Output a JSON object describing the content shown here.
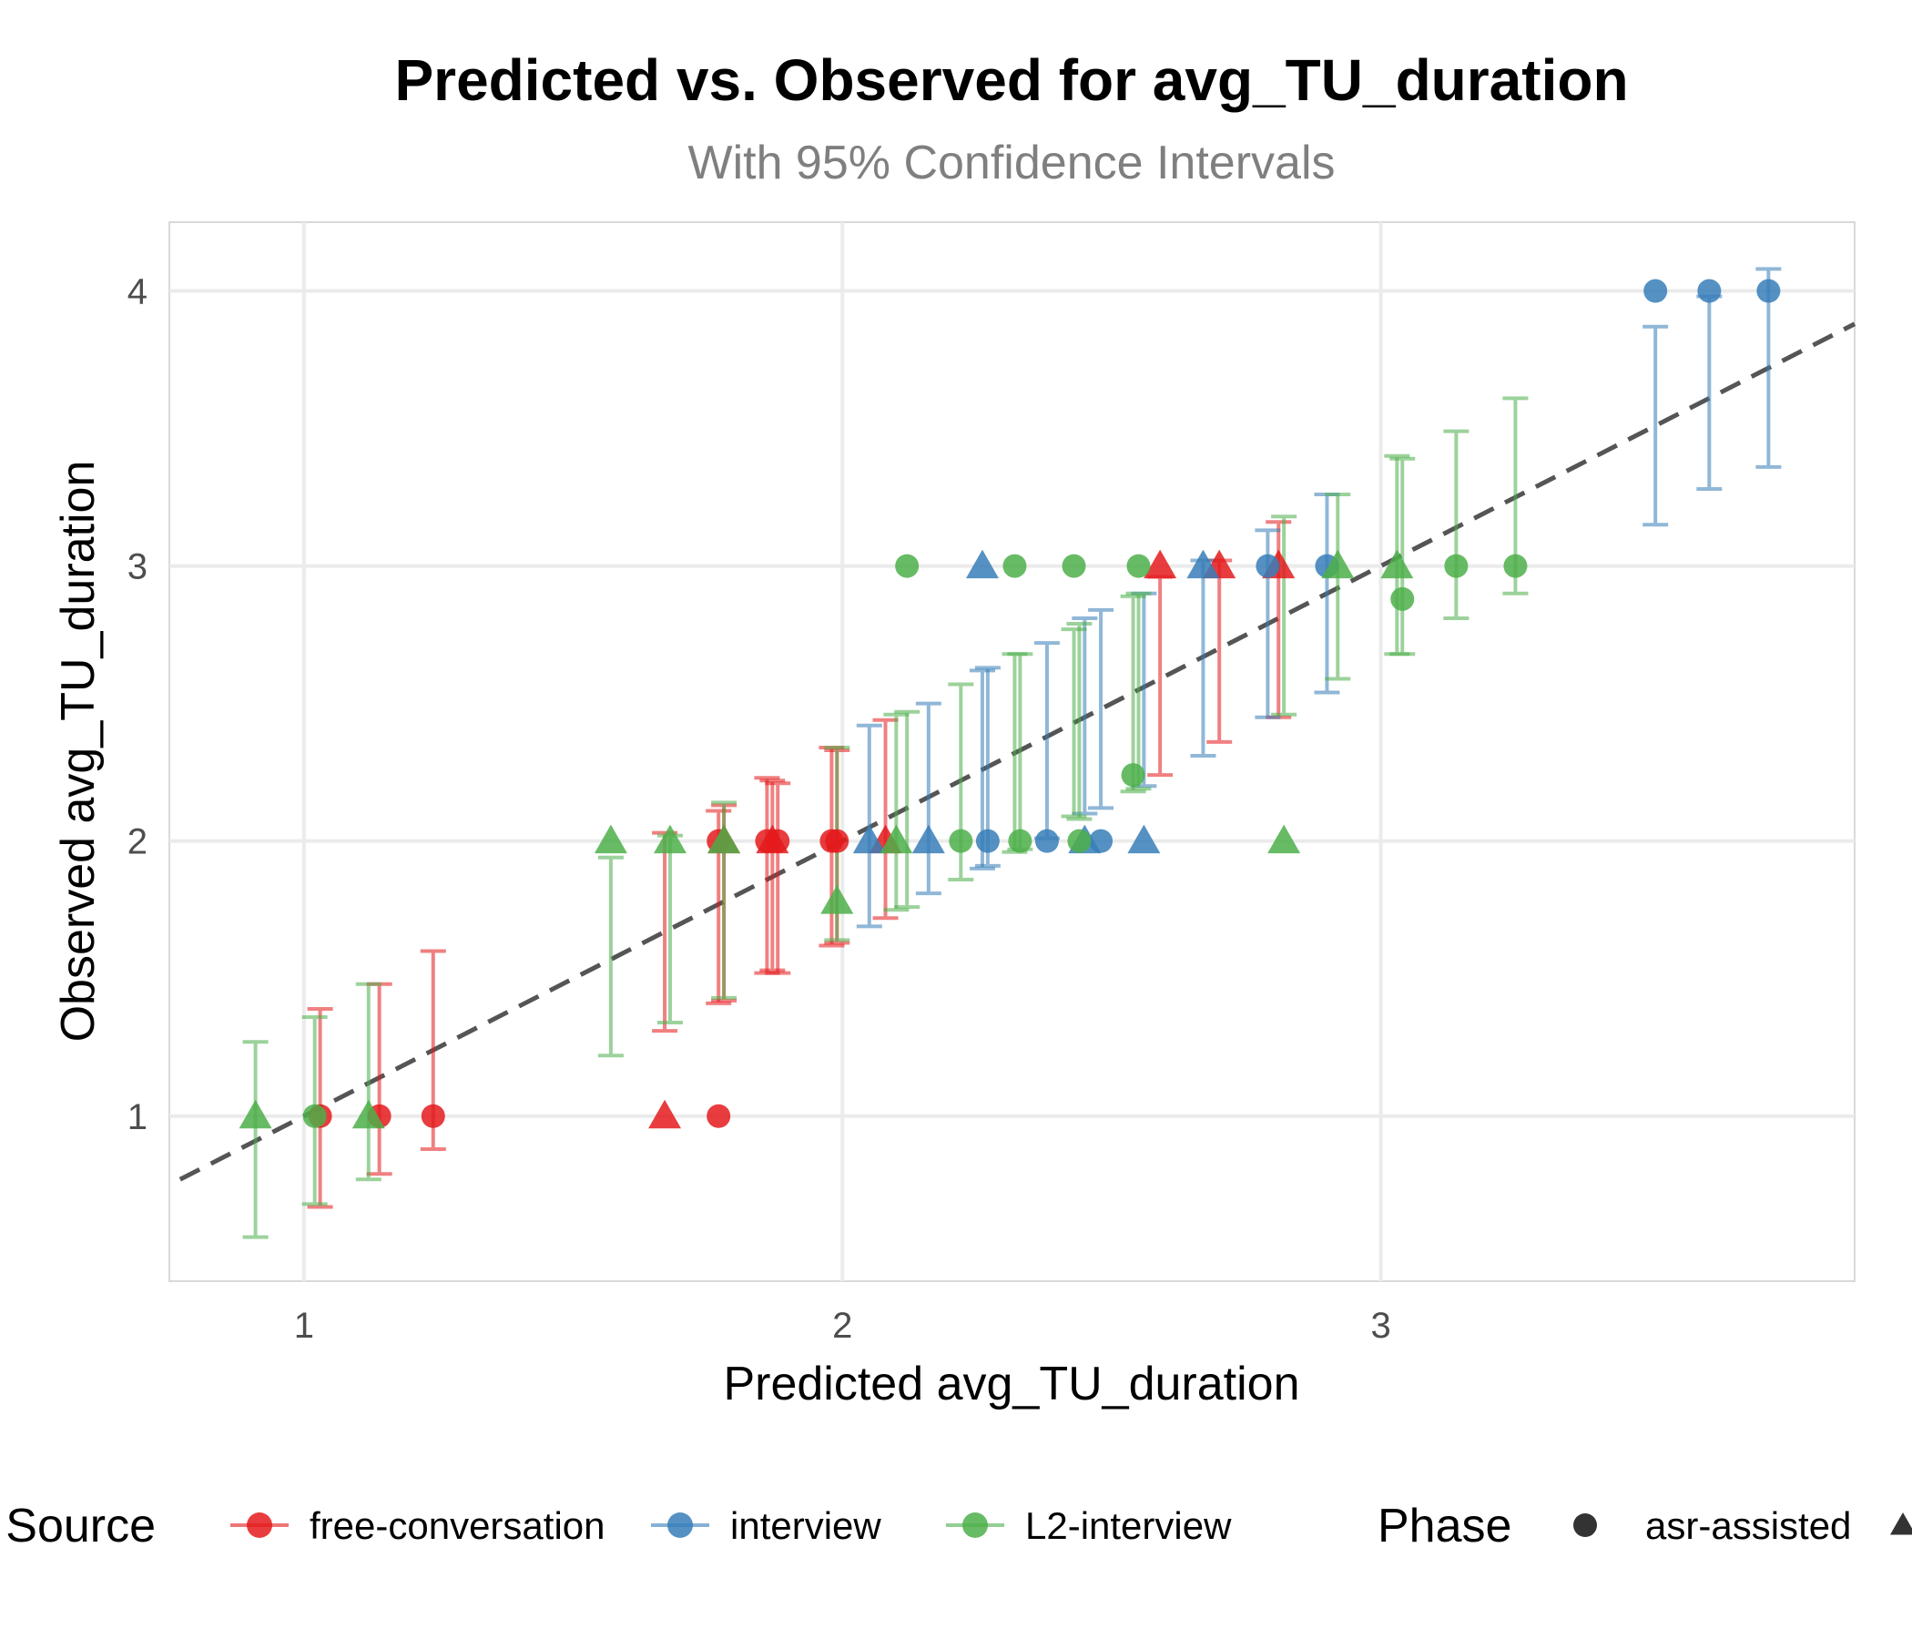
{
  "chart_data": {
    "type": "scatter",
    "title": "Predicted vs. Observed for avg_TU_duration",
    "subtitle": "With 95% Confidence Intervals",
    "xlabel": "Predicted avg_TU_duration",
    "ylabel": "Observed avg_TU_duration",
    "xlim": [
      0.75,
      3.88
    ],
    "ylim": [
      0.4,
      4.25
    ],
    "x_ticks": [
      "1",
      "2",
      "3"
    ],
    "y_ticks": [
      "1",
      "2",
      "3",
      "4"
    ],
    "grid": true,
    "reference_line": {
      "style": "dashed",
      "slope": 1,
      "intercept": 0,
      "color": "#555555"
    },
    "legend": {
      "position": "bottom",
      "color_title": "Data Source",
      "shape_title": "Phase",
      "color_entries": [
        {
          "label": "free-conversation",
          "color": "#E41A1C"
        },
        {
          "label": "interview",
          "color": "#377EB8"
        },
        {
          "label": "L2-interview",
          "color": "#4DAF4A"
        }
      ],
      "shape_entries": [
        {
          "label": "asr-assisted",
          "shape": "circle"
        },
        {
          "label": "",
          "shape": "triangle"
        }
      ]
    },
    "series": [
      {
        "source": "free-conversation",
        "color": "#E41A1C",
        "points": [
          {
            "phase": "asr-assisted",
            "x": 1.03,
            "y": 1.0,
            "lo": 0.67,
            "hi": 1.39
          },
          {
            "phase": "asr-assisted",
            "x": 1.14,
            "y": 1.0,
            "lo": 0.79,
            "hi": 1.48
          },
          {
            "phase": "asr-assisted",
            "x": 1.24,
            "y": 1.0,
            "lo": 0.88,
            "hi": 1.6
          },
          {
            "phase": "asr-assisted",
            "x": 1.77,
            "y": 1.0
          },
          {
            "phase": "asr-assisted",
            "x": 1.77,
            "y": 2.0,
            "lo": 1.41,
            "hi": 2.11
          },
          {
            "phase": "asr-assisted",
            "x": 1.86,
            "y": 2.0,
            "lo": 1.52,
            "hi": 2.23
          },
          {
            "phase": "asr-assisted",
            "x": 1.88,
            "y": 2.0,
            "lo": 1.52,
            "hi": 2.21
          },
          {
            "phase": "asr-assisted",
            "x": 1.98,
            "y": 2.0,
            "lo": 1.62,
            "hi": 2.34
          },
          {
            "phase": "asr-assisted",
            "x": 1.99,
            "y": 2.0,
            "lo": 1.63,
            "hi": 2.33
          },
          {
            "phase": "triangle",
            "x": 1.67,
            "y": 1.0,
            "lo": 1.31,
            "hi": 2.03
          },
          {
            "phase": "triangle",
            "x": 1.78,
            "y": 2.0,
            "lo": 1.42,
            "hi": 2.13
          },
          {
            "phase": "triangle",
            "x": 1.87,
            "y": 2.0,
            "lo": 1.53,
            "hi": 2.22
          },
          {
            "phase": "triangle",
            "x": 2.08,
            "y": 2.0,
            "lo": 1.72,
            "hi": 2.44
          },
          {
            "phase": "triangle",
            "x": 2.59,
            "y": 3.0,
            "lo": 2.24,
            "hi": 2.96
          },
          {
            "phase": "triangle",
            "x": 2.7,
            "y": 3.0,
            "lo": 2.36,
            "hi": 3.02
          },
          {
            "phase": "triangle",
            "x": 2.81,
            "y": 3.0,
            "lo": 2.45,
            "hi": 3.16
          }
        ]
      },
      {
        "source": "interview",
        "color": "#377EB8",
        "points": [
          {
            "phase": "asr-assisted",
            "x": 2.27,
            "y": 2.0,
            "lo": 1.91,
            "hi": 2.63
          },
          {
            "phase": "asr-assisted",
            "x": 2.38,
            "y": 2.0,
            "lo": 2.01,
            "hi": 2.72
          },
          {
            "phase": "asr-assisted",
            "x": 2.48,
            "y": 2.0,
            "lo": 2.12,
            "hi": 2.84
          },
          {
            "phase": "asr-assisted",
            "x": 2.79,
            "y": 3.0,
            "lo": 2.45,
            "hi": 3.13
          },
          {
            "phase": "asr-assisted",
            "x": 2.9,
            "y": 3.0,
            "lo": 2.54,
            "hi": 3.26
          },
          {
            "phase": "asr-assisted",
            "x": 3.51,
            "y": 4.0,
            "lo": 3.15,
            "hi": 3.87
          },
          {
            "phase": "asr-assisted",
            "x": 3.61,
            "y": 4.0,
            "lo": 3.28,
            "hi": 3.98
          },
          {
            "phase": "asr-assisted",
            "x": 3.72,
            "y": 4.0,
            "lo": 3.36,
            "hi": 4.08
          },
          {
            "phase": "triangle",
            "x": 2.05,
            "y": 2.0,
            "lo": 1.69,
            "hi": 2.42
          },
          {
            "phase": "triangle",
            "x": 2.16,
            "y": 2.0,
            "lo": 1.81,
            "hi": 2.5
          },
          {
            "phase": "triangle",
            "x": 2.26,
            "y": 3.0,
            "lo": 1.9,
            "hi": 2.62
          },
          {
            "phase": "triangle",
            "x": 2.45,
            "y": 2.0,
            "lo": 2.1,
            "hi": 2.81
          },
          {
            "phase": "triangle",
            "x": 2.56,
            "y": 2.0,
            "lo": 2.2,
            "hi": 2.9
          },
          {
            "phase": "triangle",
            "x": 2.67,
            "y": 3.0,
            "lo": 2.31,
            "hi": 3.02
          }
        ]
      },
      {
        "source": "L2-interview",
        "color": "#4DAF4A",
        "points": [
          {
            "phase": "asr-assisted",
            "x": 1.02,
            "y": 1.0,
            "lo": 0.68,
            "hi": 1.36
          },
          {
            "phase": "asr-assisted",
            "x": 2.12,
            "y": 3.0,
            "lo": 1.76,
            "hi": 2.47
          },
          {
            "phase": "asr-assisted",
            "x": 2.22,
            "y": 2.0,
            "lo": 1.86,
            "hi": 2.57
          },
          {
            "phase": "asr-assisted",
            "x": 2.32,
            "y": 3.0,
            "lo": 1.96,
            "hi": 2.68
          },
          {
            "phase": "asr-assisted",
            "x": 2.33,
            "y": 2.0,
            "lo": 1.97,
            "hi": 2.68
          },
          {
            "phase": "asr-assisted",
            "x": 2.43,
            "y": 3.0,
            "lo": 2.09,
            "hi": 2.77
          },
          {
            "phase": "asr-assisted",
            "x": 2.44,
            "y": 2.0,
            "lo": 2.08,
            "hi": 2.79
          },
          {
            "phase": "asr-assisted",
            "x": 2.54,
            "y": 2.24,
            "lo": 2.18,
            "hi": 2.89
          },
          {
            "phase": "asr-assisted",
            "x": 2.55,
            "y": 3.0,
            "lo": 2.19,
            "hi": 2.9
          },
          {
            "phase": "asr-assisted",
            "x": 3.04,
            "y": 2.88,
            "lo": 2.68,
            "hi": 3.39
          },
          {
            "phase": "asr-assisted",
            "x": 3.14,
            "y": 3.0,
            "lo": 2.81,
            "hi": 3.49
          },
          {
            "phase": "asr-assisted",
            "x": 3.25,
            "y": 3.0,
            "lo": 2.9,
            "hi": 3.61
          },
          {
            "phase": "triangle",
            "x": 0.91,
            "y": 1.0,
            "lo": 0.56,
            "hi": 1.27
          },
          {
            "phase": "triangle",
            "x": 1.12,
            "y": 1.0,
            "lo": 0.77,
            "hi": 1.48
          },
          {
            "phase": "triangle",
            "x": 1.57,
            "y": 2.0,
            "lo": 1.22,
            "hi": 1.94
          },
          {
            "phase": "triangle",
            "x": 1.68,
            "y": 2.0,
            "lo": 1.34,
            "hi": 2.02
          },
          {
            "phase": "triangle",
            "x": 1.78,
            "y": 2.0,
            "lo": 1.43,
            "hi": 2.14
          },
          {
            "phase": "triangle",
            "x": 1.99,
            "y": 1.78,
            "lo": 1.64,
            "hi": 2.34
          },
          {
            "phase": "triangle",
            "x": 2.1,
            "y": 2.0,
            "lo": 1.75,
            "hi": 2.46
          },
          {
            "phase": "triangle",
            "x": 2.82,
            "y": 2.0,
            "lo": 2.46,
            "hi": 3.18
          },
          {
            "phase": "triangle",
            "x": 2.92,
            "y": 3.0,
            "lo": 2.59,
            "hi": 3.26
          },
          {
            "phase": "triangle",
            "x": 3.03,
            "y": 3.0,
            "lo": 2.68,
            "hi": 3.4
          }
        ]
      }
    ]
  }
}
